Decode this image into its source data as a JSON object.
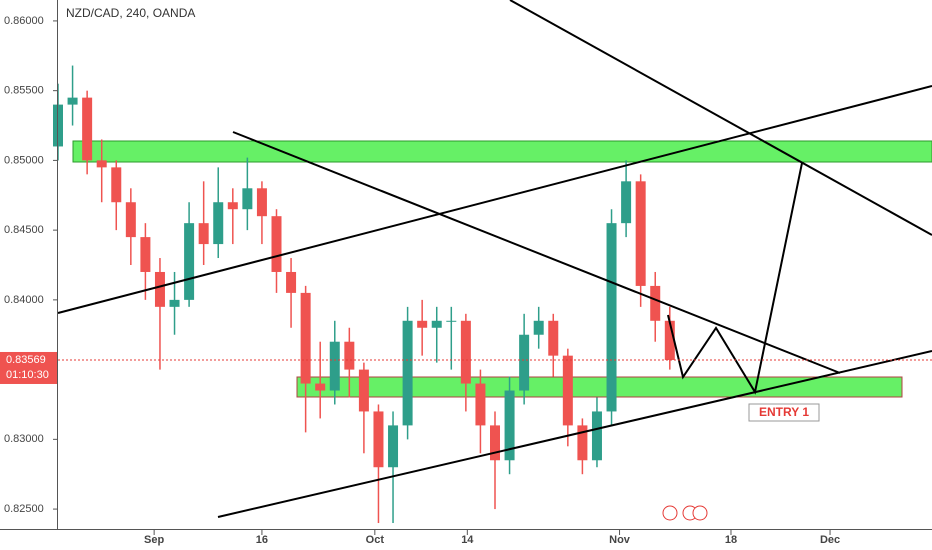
{
  "chart_data": {
    "type": "candlestick",
    "title": "NZD/CAD, 240, OANDA",
    "x": [
      0,
      2,
      4,
      6,
      8,
      10,
      12,
      14,
      16,
      18,
      20,
      22,
      24,
      26,
      28,
      30,
      32,
      34,
      36,
      38,
      40,
      42,
      44,
      46,
      48,
      50,
      52,
      54,
      56,
      58,
      60,
      62,
      64,
      66,
      68,
      70,
      72,
      74,
      76,
      78,
      80,
      82,
      84
    ],
    "open": [
      0.851,
      0.854,
      0.8545,
      0.85,
      0.8495,
      0.847,
      0.8445,
      0.842,
      0.8395,
      0.84,
      0.8455,
      0.844,
      0.847,
      0.8465,
      0.848,
      0.846,
      0.842,
      0.8405,
      0.834,
      0.8335,
      0.837,
      0.835,
      0.832,
      0.828,
      0.831,
      0.8385,
      0.838,
      0.8385,
      0.8385,
      0.834,
      0.831,
      0.8285,
      0.8335,
      0.8375,
      0.8385,
      0.836,
      0.831,
      0.8285,
      0.832,
      0.8455,
      0.8485,
      0.841,
      0.8385
    ],
    "high": [
      0.8555,
      0.8568,
      0.855,
      0.8515,
      0.85,
      0.848,
      0.8455,
      0.843,
      0.842,
      0.847,
      0.8485,
      0.8495,
      0.848,
      0.8502,
      0.8485,
      0.8465,
      0.843,
      0.841,
      0.837,
      0.8385,
      0.838,
      0.8355,
      0.8325,
      0.832,
      0.8395,
      0.84,
      0.8395,
      0.8395,
      0.839,
      0.835,
      0.832,
      0.8345,
      0.839,
      0.8395,
      0.839,
      0.8365,
      0.8315,
      0.833,
      0.8465,
      0.85,
      0.849,
      0.842,
      0.8395
    ],
    "low": [
      0.85,
      0.8525,
      0.849,
      0.847,
      0.845,
      0.8425,
      0.84,
      0.835,
      0.8375,
      0.8395,
      0.8425,
      0.843,
      0.844,
      0.845,
      0.844,
      0.8405,
      0.838,
      0.8305,
      0.8315,
      0.8325,
      0.833,
      0.829,
      0.824,
      0.824,
      0.83,
      0.836,
      0.8355,
      0.835,
      0.832,
      0.829,
      0.825,
      0.8275,
      0.8325,
      0.8365,
      0.8345,
      0.8295,
      0.8275,
      0.828,
      0.831,
      0.8445,
      0.8395,
      0.837,
      0.835
    ],
    "close": [
      0.854,
      0.8545,
      0.85,
      0.8495,
      0.847,
      0.8445,
      0.842,
      0.8395,
      0.84,
      0.8455,
      0.844,
      0.847,
      0.8465,
      0.848,
      0.846,
      0.842,
      0.8405,
      0.834,
      0.8335,
      0.837,
      0.835,
      0.832,
      0.828,
      0.831,
      0.8385,
      0.838,
      0.8385,
      0.8385,
      0.834,
      0.831,
      0.8285,
      0.8335,
      0.8375,
      0.8385,
      0.836,
      0.831,
      0.8285,
      0.832,
      0.8455,
      0.8485,
      0.841,
      0.8385,
      0.83569
    ],
    "up_color": "#2e9e8a",
    "down_color": "#ef5350",
    "xlim": [
      0,
      120
    ],
    "xticks": [
      {
        "value": 13.2,
        "label": "Sep"
      },
      {
        "value": 28,
        "label": "16"
      },
      {
        "value": 43.5,
        "label": "Oct"
      },
      {
        "value": 56.2,
        "label": "14"
      },
      {
        "value": 77.1,
        "label": "Nov"
      },
      {
        "value": 92.4,
        "label": "18"
      },
      {
        "value": 106,
        "label": "Dec"
      }
    ],
    "ylim": [
      0.8235,
      0.8615
    ],
    "yticks": [
      {
        "value": 0.825,
        "label": "0.82500"
      },
      {
        "value": 0.83,
        "label": "0.83000"
      },
      {
        "value": 0.835,
        "label": "0.83500"
      },
      {
        "value": 0.84,
        "label": "0.84000"
      },
      {
        "value": 0.845,
        "label": "0.84500"
      },
      {
        "value": 0.85,
        "label": "0.85000"
      },
      {
        "value": 0.855,
        "label": "0.85500"
      },
      {
        "value": 0.86,
        "label": "0.86000"
      }
    ],
    "last_price": {
      "value": 0.83569,
      "label": "0.83569"
    },
    "countdown": "01:10:30",
    "annotation": "ENTRY 1"
  }
}
